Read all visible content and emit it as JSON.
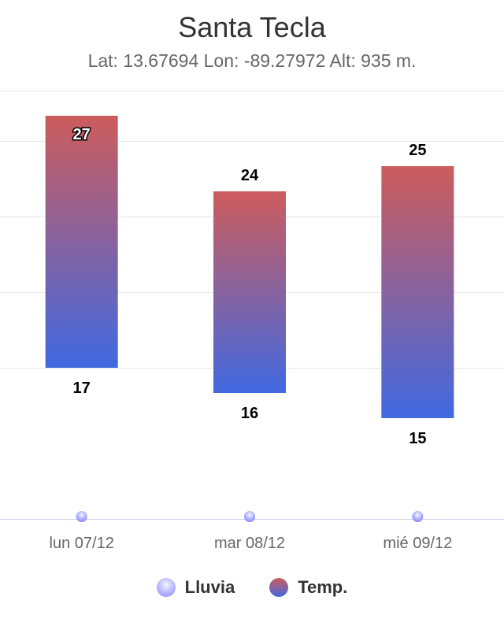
{
  "chart_data": {
    "type": "bar",
    "subtype": "columnrange",
    "title": "Santa Tecla",
    "subtitle": "Lat: 13.67694 Lon: -89.27972 Alt: 935 m.",
    "categories": [
      "lun 07/12",
      "mar 08/12",
      "mié 09/12"
    ],
    "series": [
      {
        "name": "Temp.",
        "low": [
          17,
          16,
          15
        ],
        "high": [
          27,
          24,
          25
        ]
      },
      {
        "name": "Lluvia",
        "values": [
          0,
          0,
          0
        ]
      }
    ],
    "ylim": [
      11,
      28
    ],
    "grid": true,
    "legend": "bottom-center",
    "colors": {
      "high": "#cd5c5c",
      "low": "#4169e1",
      "rain": "#b4b4ff"
    }
  }
}
